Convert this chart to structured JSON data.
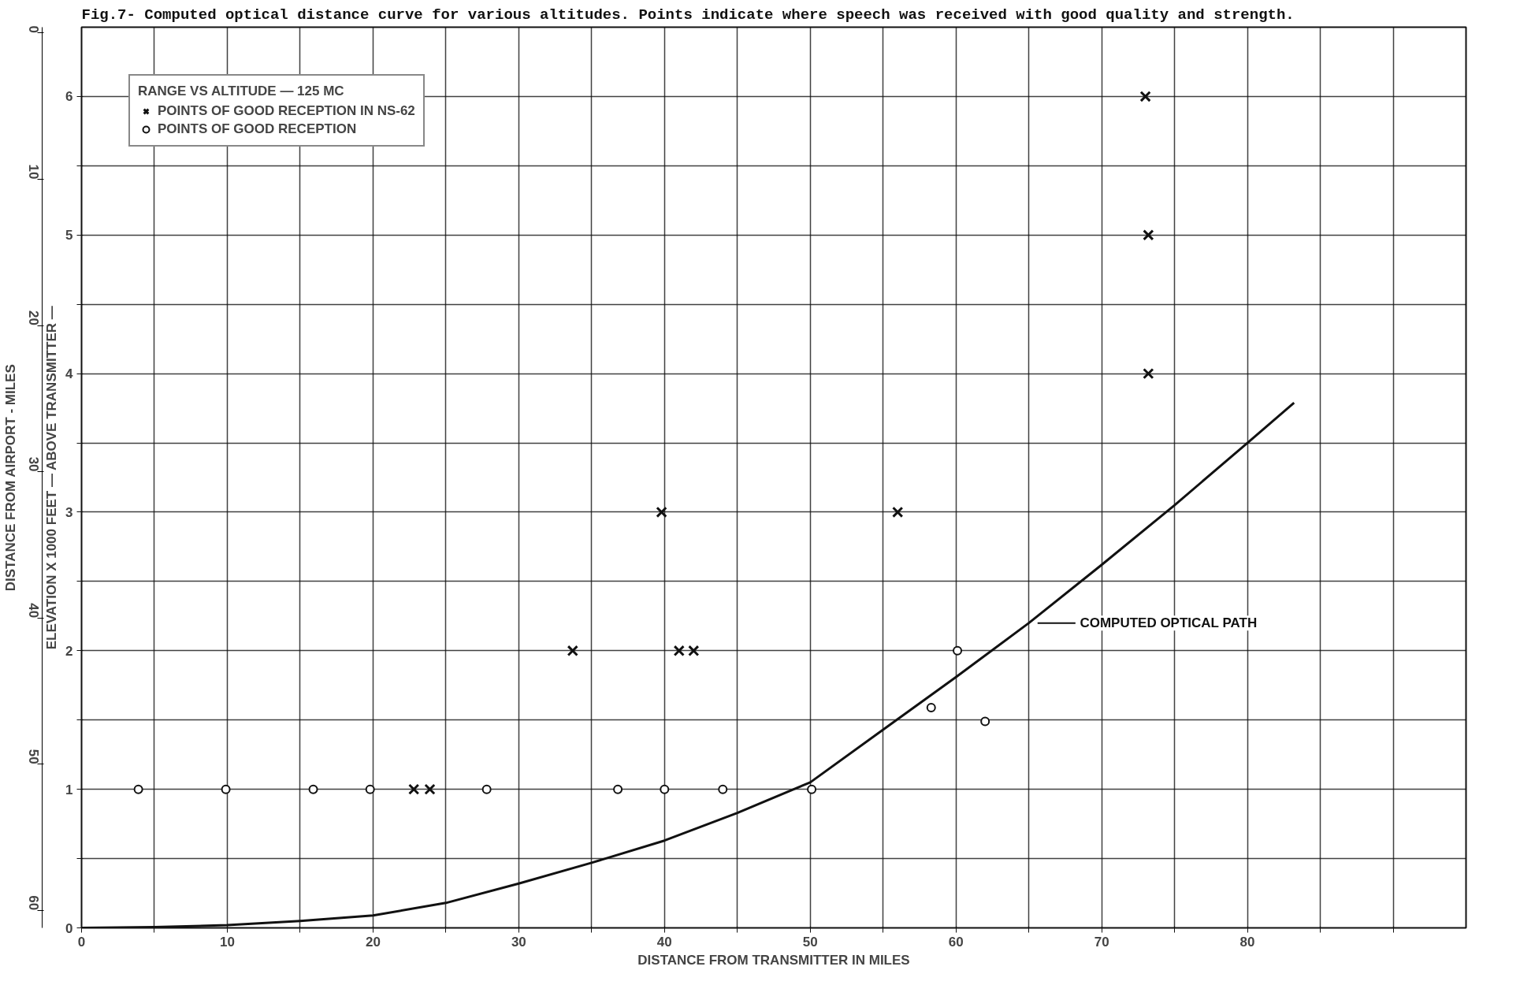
{
  "chart_data": {
    "type": "scatter",
    "title": "Fig.7- Computed optical distance curve for various altitudes. Points indicate where speech was received with good quality and strength.",
    "xlabel": "DISTANCE FROM TRANSMITTER IN MILES",
    "ylabel": "ELEVATION X 1000 FEET — ABOVE TRANSMITTER —",
    "y2label": "DISTANCE FROM AIRPORT - MILES",
    "legend_title": "RANGE VS ALTITUDE — 125 MC",
    "legend": "top left",
    "grid": true,
    "xlim": [
      0,
      95
    ],
    "xticks": [
      0,
      {
        "value": 5,
        "label": null
      },
      10,
      {
        "value": 15,
        "label": null
      },
      20,
      {
        "value": 25,
        "label": null
      },
      30,
      {
        "value": 35,
        "label": null
      },
      40,
      {
        "value": 45,
        "label": null
      },
      50,
      {
        "value": 55,
        "label": null
      },
      60,
      {
        "value": 65,
        "label": null
      },
      70,
      {
        "value": 75,
        "label": null
      },
      80,
      {
        "value": 85,
        "label": null
      },
      {
        "value": 90,
        "label": null
      }
    ],
    "ylim": [
      0,
      6.5
    ],
    "yticks": [
      0,
      {
        "value": 0.5,
        "label": null
      },
      1,
      {
        "value": 1.5,
        "label": null
      },
      2,
      {
        "value": 2.5,
        "label": null
      },
      3,
      {
        "value": 3.5,
        "label": null
      },
      4,
      {
        "value": 4.5,
        "label": null
      },
      5,
      {
        "value": 5.5,
        "label": null
      },
      6
    ],
    "y2lim": [
      61.2,
      -0.4
    ],
    "y2ticks": [
      0,
      10,
      20,
      30,
      40,
      50,
      60
    ],
    "series": [
      {
        "name": "POINTS OF GOOD RECEPTION IN NS-62",
        "marker": "cross",
        "color": "#111111",
        "x": [
          73.0,
          73.2,
          73.2,
          39.8,
          56.0,
          33.7,
          41.0,
          42.0,
          22.8,
          23.9
        ],
        "values": [
          6,
          5,
          4,
          3,
          3,
          2,
          2,
          2,
          1,
          1
        ]
      },
      {
        "name": "POINTS OF GOOD RECEPTION",
        "marker": "circle",
        "color": "#111111",
        "x": [
          3.9,
          9.9,
          15.9,
          19.8,
          27.8,
          36.8,
          40.0,
          44.0,
          50.1,
          58.3,
          60.1,
          62.0
        ],
        "values": [
          1,
          1,
          1,
          1,
          1,
          1,
          1,
          1,
          1,
          1.59,
          2.0,
          1.49
        ]
      },
      {
        "name": "COMPUTED OPTICAL PATH",
        "type": "line",
        "color": "#111111",
        "x": [
          0,
          5,
          10,
          15,
          20,
          25,
          30,
          35,
          40,
          45,
          50,
          55,
          60,
          65,
          70,
          75,
          80,
          83.2
        ],
        "values": [
          0,
          0.005,
          0.02,
          0.05,
          0.09,
          0.18,
          0.32,
          0.47,
          0.63,
          0.83,
          1.05,
          1.43,
          1.81,
          2.2,
          2.62,
          3.05,
          3.5,
          3.79
        ]
      }
    ]
  }
}
